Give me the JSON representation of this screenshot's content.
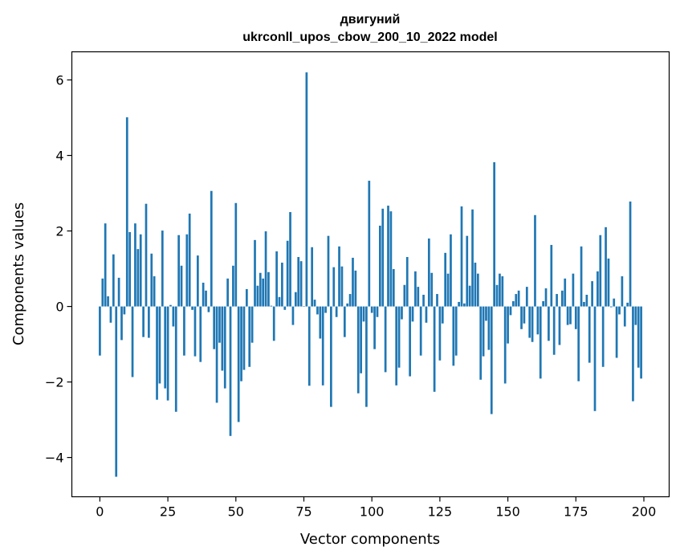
{
  "chart_data": {
    "type": "bar",
    "title_lines": [
      "двигуний",
      "ukrconll_upos_cbow_200_10_2022 model"
    ],
    "xlabel": "Vector components",
    "ylabel": "Components values",
    "xlim": [
      -10.3,
      209.3
    ],
    "ylim": [
      -5.04,
      6.745
    ],
    "xticks": [
      0,
      25,
      50,
      75,
      100,
      125,
      150,
      175,
      200
    ],
    "xtick_labels": [
      "0",
      "25",
      "50",
      "75",
      "100",
      "125",
      "150",
      "175",
      "200"
    ],
    "yticks": [
      -4,
      -2,
      0,
      2,
      4,
      6
    ],
    "ytick_labels": [
      "−4",
      "−2",
      "0",
      "2",
      "4",
      "6"
    ],
    "grid": false,
    "bar_color": "#1f77b4",
    "bar_width": 0.8,
    "values": [
      -1.3,
      0.74,
      2.2,
      0.27,
      -0.43,
      1.38,
      -4.51,
      0.76,
      -0.89,
      -0.21,
      5.01,
      1.97,
      -1.87,
      2.2,
      1.52,
      1.91,
      -0.81,
      2.72,
      -0.83,
      1.4,
      0.8,
      -2.47,
      -2.04,
      2.01,
      -2.17,
      -2.49,
      0.04,
      -0.53,
      -2.79,
      1.89,
      1.08,
      -1.3,
      1.91,
      2.46,
      -0.09,
      -1.32,
      1.35,
      -1.47,
      0.63,
      0.42,
      -0.15,
      3.06,
      -1.13,
      -2.55,
      -0.96,
      -1.7,
      -2.17,
      0.74,
      -3.43,
      1.08,
      2.74,
      -3.06,
      -1.98,
      -1.68,
      0.46,
      -1.6,
      -0.96,
      1.76,
      0.55,
      0.89,
      0.74,
      1.99,
      0.91,
      0.02,
      -0.91,
      1.46,
      0.25,
      1.16,
      -0.09,
      1.74,
      2.5,
      -0.49,
      0.38,
      1.31,
      1.2,
      0.01,
      6.2,
      -2.1,
      1.57,
      0.18,
      -0.21,
      -0.85,
      -2.09,
      -0.17,
      1.87,
      -2.66,
      1.04,
      -0.28,
      1.59,
      1.06,
      -0.81,
      0.08,
      0.33,
      1.29,
      0.95,
      -2.3,
      -1.77,
      -0.4,
      -2.66,
      3.33,
      -0.17,
      -1.13,
      -0.28,
      2.14,
      2.59,
      -1.74,
      2.67,
      2.52,
      0.99,
      -2.09,
      -1.62,
      -0.34,
      0.57,
      1.31,
      -1.85,
      -0.4,
      0.93,
      0.52,
      -1.3,
      0.31,
      -0.43,
      1.8,
      0.89,
      -2.26,
      0.33,
      -1.43,
      -0.45,
      1.42,
      0.87,
      1.91,
      -1.57,
      -1.3,
      0.12,
      2.65,
      0.08,
      1.87,
      0.55,
      2.57,
      1.16,
      0.87,
      -1.94,
      -1.32,
      -0.38,
      -1.15,
      -2.85,
      3.82,
      0.57,
      0.87,
      0.8,
      -2.04,
      -0.98,
      -0.23,
      0.14,
      0.33,
      0.42,
      -0.6,
      -0.45,
      0.52,
      -0.83,
      -0.94,
      2.42,
      -0.74,
      -1.91,
      0.14,
      0.48,
      -0.91,
      1.63,
      -1.28,
      0.33,
      -1.02,
      0.42,
      0.74,
      -0.49,
      -0.47,
      0.87,
      -0.6,
      -1.98,
      1.59,
      0.12,
      0.31,
      -1.49,
      0.67,
      -2.77,
      0.93,
      1.89,
      -1.6,
      2.1,
      1.27,
      -0.02,
      0.21,
      -1.36,
      -0.21,
      0.8,
      -0.53,
      0.1,
      2.78,
      -2.51,
      -0.49,
      -1.62,
      -1.91
    ]
  }
}
